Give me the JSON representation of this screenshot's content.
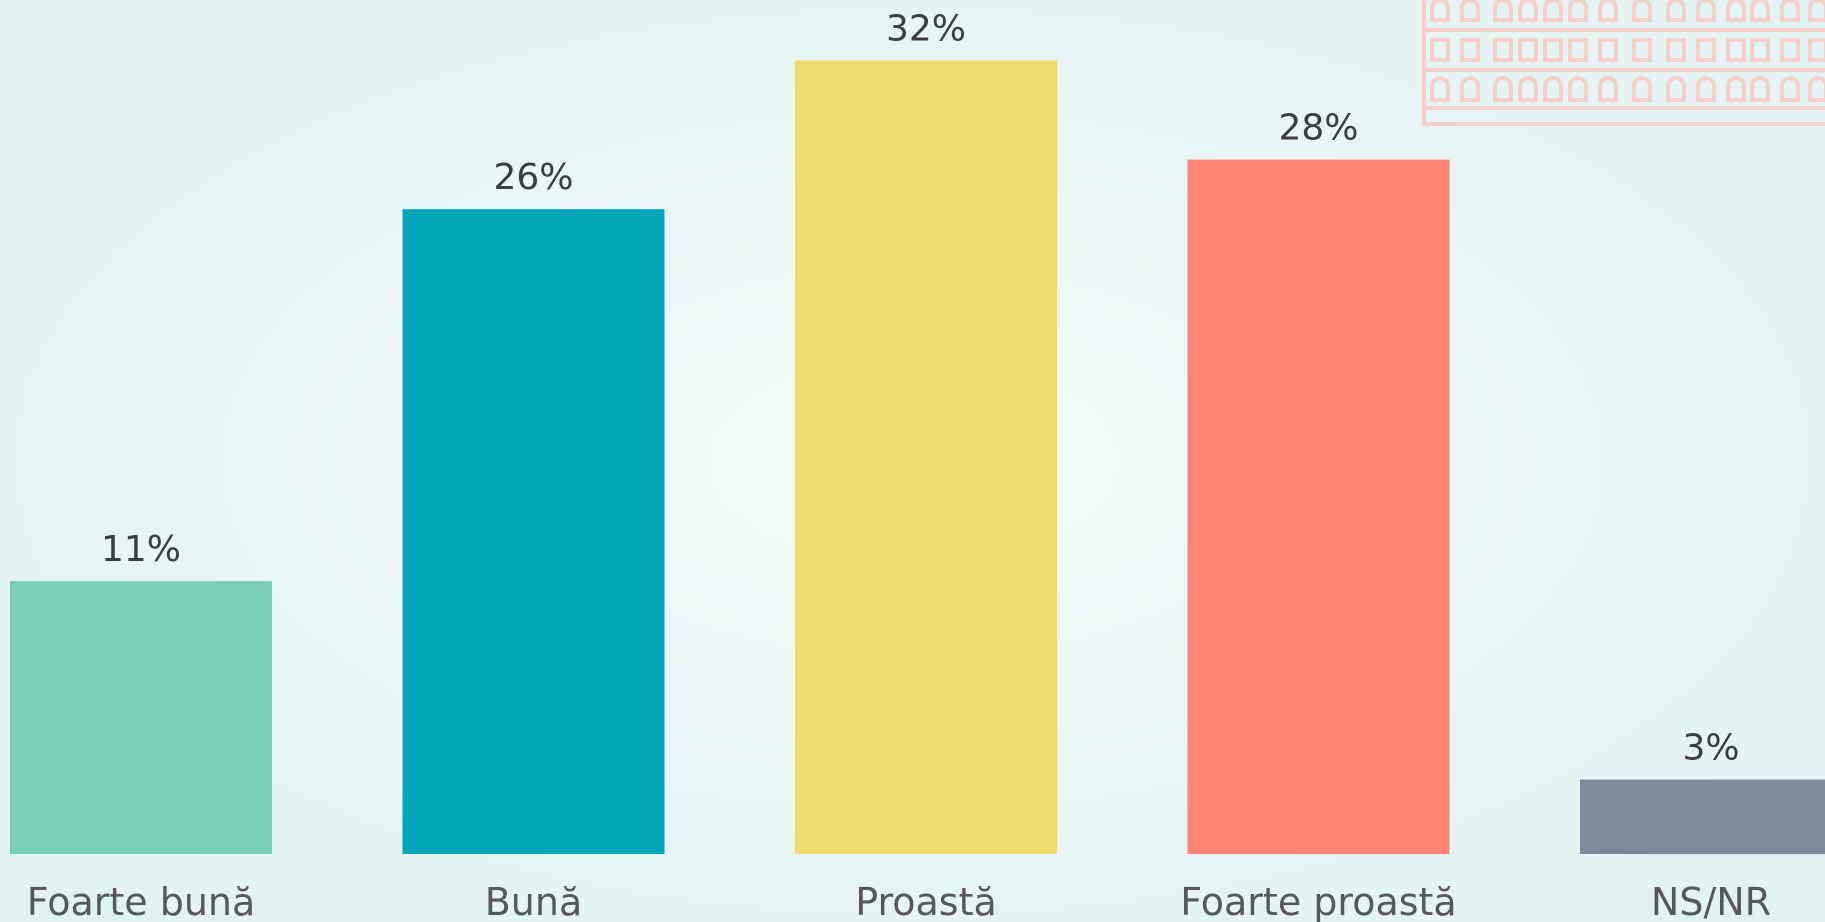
{
  "chart_data": {
    "type": "bar",
    "categories": [
      "Foarte bună",
      "Bună",
      "Proastă",
      "Foarte proastă",
      "NS/NR"
    ],
    "values": [
      11,
      26,
      32,
      28,
      3
    ],
    "value_labels": [
      "11%",
      "26%",
      "32%",
      "28%",
      "3%"
    ],
    "colors": [
      "#74cfb4",
      "#03a5b9",
      "#f0dc6b",
      "#fe8475",
      "#7e8a9c"
    ],
    "ylim": [
      0,
      32
    ],
    "grid": false,
    "legend": "none"
  },
  "background": {
    "watermark_icon": "building-facade-icon"
  }
}
